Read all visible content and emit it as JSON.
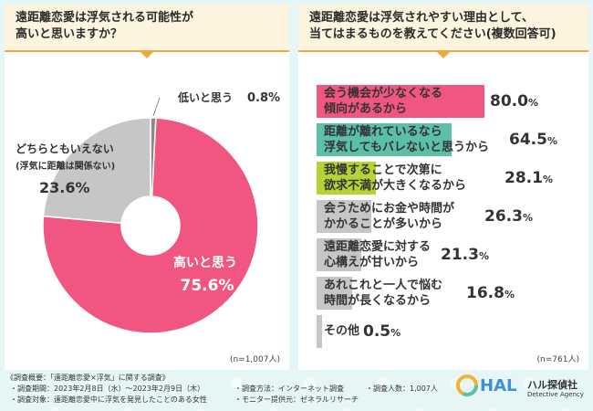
{
  "left": {
    "question": "遠距離恋愛は浮気される可能性が\n高いと思いますか？",
    "n_note": "(n=1,007人)"
  },
  "right": {
    "question": "遠距離恋愛は浮気されやすい理由として、\n当てはまるものを教えてください(複数回答可)",
    "n_note": "(n=761人)"
  },
  "chart_data": [
    {
      "type": "pie",
      "slices": [
        {
          "label": "高いと思う",
          "value": 75.6,
          "value_text": "75.6",
          "color": "#f0567f"
        },
        {
          "label": "どちらともいえない",
          "sublabel": "(浮気に距離は関係ない)",
          "value": 23.6,
          "value_text": "23.6",
          "color": "#c6c6c6"
        },
        {
          "label": "低いと思う",
          "value": 0.8,
          "value_text": "0.8",
          "color": "#8a8a8a"
        }
      ],
      "unit": "%"
    },
    {
      "type": "bar",
      "categories": [
        "会う機会が少なくなる\n傾向があるから",
        "距離が離れているなら\n浮気してもバレないと思うから",
        "我慢することで次第に\n欲求不満が大きくなるから",
        "会うためにお金や時間が\nかかることが多いから",
        "遠距離恋愛に対する\n心構えが甘いから",
        "あれこれと一人で悩む\n時間が長くなるから",
        "その他"
      ],
      "values": [
        80.0,
        64.5,
        28.1,
        26.3,
        21.3,
        16.8,
        0.5
      ],
      "value_texts": [
        "80.0",
        "64.5",
        "28.1",
        "26.3",
        "21.3",
        "16.8",
        "0.5"
      ],
      "colors": [
        "#f0567f",
        "#5cbfa8",
        "#b5d334",
        "#c6c6c6",
        "#c6c6c6",
        "#c6c6c6",
        "#c6c6c6"
      ],
      "unit": "%",
      "xlim": [
        0,
        100
      ]
    }
  ],
  "footer": {
    "line1": "《調査概要：「遠距離恋愛×浮気」に関する調査》",
    "period": "・調査期間：2023年2月8日（水）～2023年2月9日（木）",
    "target": "・調査対象：遠距離恋愛中に浮気を発見したことのある女性",
    "method": "・調査方法：インターネット調査",
    "provider": "・モニター提供元：ゼネラルリサーチ",
    "count": "・調査人数：1,007人",
    "logo": "HAL",
    "brand": "ハル探偵社",
    "brand_sub": "Detective Agency"
  }
}
